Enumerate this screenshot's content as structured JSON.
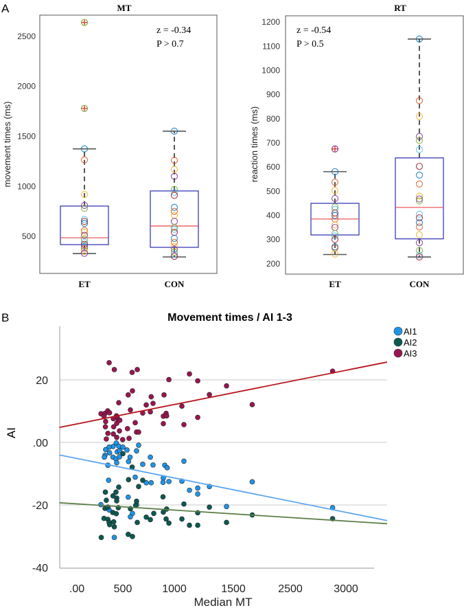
{
  "colors": {
    "box": "#3a3ab8",
    "median": "#e8474c",
    "whisker": "#555555",
    "outlier": "#e0302a",
    "circle_palette": [
      "#0072BD",
      "#D95319",
      "#EDB120",
      "#7E2F8E",
      "#77AC30",
      "#4DBEEE",
      "#A2142F"
    ],
    "ai1": "#1f95e8",
    "ai2": "#0b5a52",
    "ai3": "#9a1550",
    "ai1_line": "#5aa6f0",
    "ai2_line": "#5d7f4a",
    "ai3_line": "#b8151b",
    "grid": "#d4d4d4"
  },
  "chart_data": [
    {
      "type": "box",
      "panel_label": "A",
      "title": "MT",
      "ylabel": "movement times (ms)",
      "ylim": [
        129,
        2713
      ],
      "yticks": [
        500,
        1000,
        1500,
        2000,
        2500
      ],
      "categories": [
        "ET",
        "CON"
      ],
      "annotation": [
        "z = -0.34",
        "P > 0.7"
      ],
      "groups": [
        {
          "name": "ET",
          "q1": 417,
          "median": 486,
          "q3": 803,
          "whisker_low": 328,
          "whisker_high": 1375,
          "outliers": [
            2640,
            1780
          ],
          "points": [
            1375,
            1265,
            920,
            810,
            780,
            670,
            650,
            630,
            560,
            540,
            510,
            470,
            440,
            420,
            400,
            380,
            350,
            330
          ]
        },
        {
          "name": "CON",
          "q1": 390,
          "median": 603,
          "q3": 954,
          "whisker_low": 294,
          "whisker_high": 1552,
          "outliers": [],
          "points": [
            1552,
            1260,
            1170,
            1100,
            970,
            940,
            910,
            790,
            750,
            710,
            650,
            590,
            570,
            540,
            480,
            440,
            400,
            370,
            340,
            320,
            300
          ]
        }
      ]
    },
    {
      "type": "box",
      "title": "RT",
      "ylabel": "reaction times (ms)",
      "ylim": [
        157,
        1226
      ],
      "yticks": [
        200,
        300,
        400,
        500,
        600,
        700,
        800,
        900,
        1000,
        1100,
        1200
      ],
      "categories": [
        "ET",
        "CON"
      ],
      "annotation": [
        "z = -0.54",
        "P > 0.5"
      ],
      "groups": [
        {
          "name": "ET",
          "q1": 319,
          "median": 385,
          "q3": 450,
          "whisker_low": 238,
          "whisker_high": 581,
          "outliers": [
            675
          ],
          "points": [
            581,
            537,
            503,
            470,
            435,
            425,
            410,
            400,
            385,
            360,
            350,
            325,
            315,
            300,
            270,
            265,
            240
          ]
        },
        {
          "name": "CON",
          "q1": 303,
          "median": 433,
          "q3": 638,
          "whisker_low": 228,
          "whisker_high": 1130,
          "outliers": [],
          "points": [
            1130,
            875,
            810,
            727,
            710,
            672,
            603,
            567,
            530,
            480,
            468,
            460,
            405,
            390,
            370,
            352,
            320,
            287,
            255,
            235,
            228
          ]
        }
      ]
    },
    {
      "type": "scatter",
      "panel_label": "B",
      "title": "Movement times / AI 1-3",
      "xlabel": "Median MT",
      "ylabel": "AI",
      "xticks": [
        0,
        500,
        1000,
        1500,
        2500,
        3000
      ],
      "xtick_labels": [
        ".00",
        "500",
        "1000",
        "1500",
        "2500",
        "3000"
      ],
      "yticks": [
        20,
        0,
        -20,
        -40
      ],
      "ytick_labels": [
        "20",
        ".00",
        "-20",
        "-40"
      ],
      "ylim": [
        -40,
        37
      ],
      "gridlines": [
        20,
        0,
        -20
      ],
      "legend": {
        "position": "top-right",
        "entries": [
          "AI1",
          "AI2",
          "AI3"
        ]
      },
      "series": [
        {
          "name": "AI1",
          "fit": {
            "x": [
              -190,
              3370
            ],
            "y": [
              -4,
              -25
            ]
          },
          "points": [
            [
              428,
              -0.2
            ],
            [
              393,
              -1.3
            ],
            [
              455,
              -1.2
            ],
            [
              500,
              -1.5
            ],
            [
              351,
              -1.5
            ],
            [
              313,
              -2.3
            ],
            [
              356,
              -3.3
            ],
            [
              438,
              -3.0
            ],
            [
              465,
              -2.7
            ],
            [
              540,
              -2.4
            ],
            [
              653,
              -0.9
            ],
            [
              633,
              -2.7
            ],
            [
              306,
              -4.1
            ],
            [
              299,
              -4.7
            ],
            [
              393,
              -4.7
            ],
            [
              425,
              -5.3
            ],
            [
              463,
              -4.6
            ],
            [
              570,
              -4.7
            ],
            [
              555,
              -6.1
            ],
            [
              433,
              -6.5
            ],
            [
              337,
              -7.3
            ],
            [
              693,
              -7.0
            ],
            [
              767,
              -4.7
            ],
            [
              793,
              -7.2
            ],
            [
              907,
              -7.3
            ],
            [
              930,
              -8.1
            ],
            [
              1081,
              -6.0
            ],
            [
              345,
              -12.1
            ],
            [
              620,
              -11.1
            ],
            [
              727,
              -12.9
            ],
            [
              775,
              -12.9
            ],
            [
              893,
              -11.4
            ],
            [
              890,
              -12.8
            ],
            [
              947,
              -12.5
            ],
            [
              1064,
              -12.4
            ],
            [
              1128,
              -15.3
            ],
            [
              1198,
              -14.6
            ],
            [
              1198,
              -16.5
            ],
            [
              1297,
              -14.1
            ],
            [
              1831,
              -12.6
            ],
            [
              552,
              -17.5
            ],
            [
              261,
              -19.9
            ],
            [
              633,
              -19.9
            ],
            [
              593,
              -22.7
            ],
            [
              573,
              -23.8
            ],
            [
              351,
              -21.6
            ],
            [
              1442,
              -20.5
            ],
            [
              2880,
              -20.9
            ],
            [
              407,
              -30.4
            ]
          ]
        },
        {
          "name": "AI2",
          "fit": {
            "x": [
              -190,
              3370
            ],
            "y": [
              -19.3,
              -26
            ]
          },
          "points": [
            [
              500,
              -3.6
            ],
            [
              590,
              -7.9
            ],
            [
              555,
              -11.9
            ],
            [
              653,
              -14.1
            ],
            [
              693,
              -12.1
            ],
            [
              455,
              -14.3
            ],
            [
              425,
              -15.9
            ],
            [
              310,
              -15.9
            ],
            [
              393,
              -17.1
            ],
            [
              433,
              -17.8
            ],
            [
              320,
              -18.5
            ],
            [
              433,
              -18.7
            ],
            [
              633,
              -18.8
            ],
            [
              625,
              -20.1
            ],
            [
              890,
              -17.4
            ],
            [
              1081,
              -19.7
            ],
            [
              1297,
              -20.7
            ],
            [
              1831,
              -23.2
            ],
            [
              2880,
              -24.4
            ],
            [
              1198,
              -22.5
            ],
            [
              925,
              -21.3
            ],
            [
              893,
              -22.3
            ],
            [
              800,
              -22.7
            ],
            [
              727,
              -23.9
            ],
            [
              767,
              -24.7
            ],
            [
              920,
              -24.5
            ],
            [
              1064,
              -24.5
            ],
            [
              947,
              -25.8
            ],
            [
              640,
              -25.6
            ],
            [
              1128,
              -26.5
            ],
            [
              1198,
              -26.5
            ],
            [
              1442,
              -25.6
            ],
            [
              306,
              -21.1
            ],
            [
              337,
              -20.7
            ],
            [
              390,
              -22.4
            ],
            [
              428,
              -22.8
            ],
            [
              450,
              -20.9
            ],
            [
              573,
              -21.2
            ],
            [
              295,
              -24.3
            ],
            [
              337,
              -24.6
            ],
            [
              351,
              -25.6
            ],
            [
              400,
              -25.4
            ],
            [
              356,
              -26.3
            ],
            [
              407,
              -27.0
            ],
            [
              265,
              -30.4
            ],
            [
              552,
              -29.4
            ],
            [
              593,
              -30.1
            ]
          ]
        },
        {
          "name": "AI3",
          "fit": {
            "x": [
              -190,
              3370
            ],
            "y": [
              4.8,
              25.7
            ]
          },
          "points": [
            [
              351,
              25.5
            ],
            [
              407,
              23.3
            ],
            [
              590,
              22.4
            ],
            [
              640,
              23.3
            ],
            [
              1128,
              21.9
            ],
            [
              947,
              20.1
            ],
            [
              1198,
              19.7
            ],
            [
              1442,
              18.1
            ],
            [
              2880,
              22.8
            ],
            [
              593,
              16.5
            ],
            [
              552,
              15.2
            ],
            [
              900,
              15.2
            ],
            [
              775,
              14.6
            ],
            [
              455,
              12.7
            ],
            [
              793,
              12.5
            ],
            [
              1297,
              15.3
            ],
            [
              727,
              12.0
            ],
            [
              573,
              10.4
            ],
            [
              1064,
              11.6
            ],
            [
              1831,
              12.1
            ],
            [
              693,
              9.4
            ],
            [
              767,
              9.8
            ],
            [
              920,
              9.3
            ],
            [
              893,
              8.4
            ],
            [
              925,
              8.5
            ],
            [
              262,
              9.2
            ],
            [
              306,
              9.3
            ],
            [
              335,
              10.1
            ],
            [
              355,
              9.5
            ],
            [
              295,
              8.3
            ],
            [
              430,
              8.5
            ],
            [
              438,
              8.1
            ],
            [
              396,
              7.6
            ],
            [
              450,
              7.0
            ],
            [
              467,
              7.1
            ],
            [
              313,
              6.7
            ],
            [
              433,
              6.1
            ],
            [
              620,
              6.3
            ],
            [
              1198,
              8.0
            ],
            [
              1081,
              5.7
            ],
            [
              893,
              6.0
            ],
            [
              310,
              5.0
            ],
            [
              400,
              5.0
            ],
            [
              545,
              4.4
            ],
            [
              463,
              3.7
            ],
            [
              633,
              3.3
            ],
            [
              653,
              3.3
            ],
            [
              337,
              2.9
            ],
            [
              396,
              2.7
            ],
            [
              560,
              1.3
            ],
            [
              498,
              0.9
            ],
            [
              320,
              1.1
            ],
            [
              433,
              1.6
            ]
          ]
        }
      ]
    }
  ]
}
